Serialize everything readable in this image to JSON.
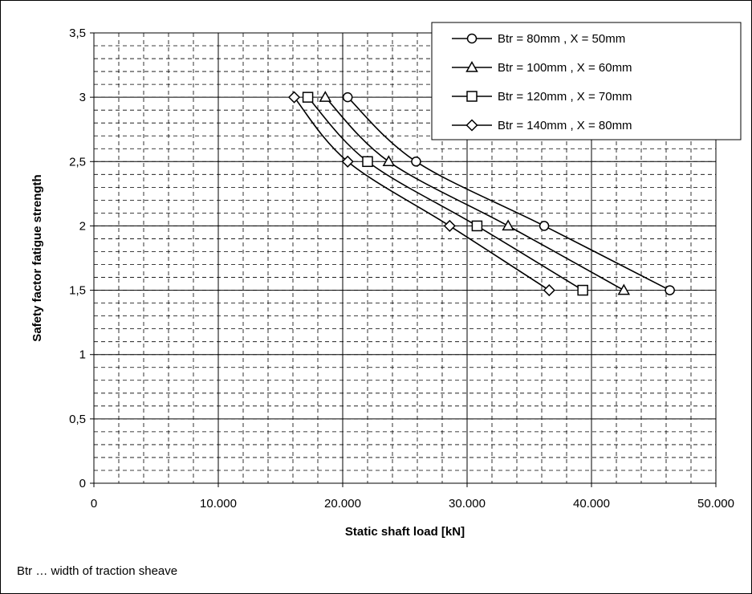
{
  "chart_data": {
    "type": "line",
    "xlabel": "Static shaft load [kN]",
    "ylabel": "Safety factor fatigue strength",
    "xlim": [
      0,
      50000
    ],
    "ylim": [
      0,
      3.5
    ],
    "x_ticks": [
      {
        "value": 0,
        "label": "0"
      },
      {
        "value": 10000,
        "label": "10.000"
      },
      {
        "value": 20000,
        "label": "20.000"
      },
      {
        "value": 30000,
        "label": "30.000"
      },
      {
        "value": 40000,
        "label": "40.000"
      },
      {
        "value": 50000,
        "label": "50.000"
      }
    ],
    "y_ticks": [
      {
        "value": 0,
        "label": "0"
      },
      {
        "value": 0.5,
        "label": "0,5"
      },
      {
        "value": 1,
        "label": "1"
      },
      {
        "value": 1.5,
        "label": "1,5"
      },
      {
        "value": 2,
        "label": "2"
      },
      {
        "value": 2.5,
        "label": "2,5"
      },
      {
        "value": 3,
        "label": "3"
      },
      {
        "value": 3.5,
        "label": "3,5"
      }
    ],
    "grid": {
      "major": true,
      "minor_dashed": true
    },
    "legend_position": "top-right",
    "series": [
      {
        "name": "Btr = 80mm , X = 50mm",
        "marker": "circle",
        "points": [
          [
            20400,
            3.0
          ],
          [
            25900,
            2.5
          ],
          [
            36200,
            2.0
          ],
          [
            46300,
            1.5
          ]
        ]
      },
      {
        "name": "Btr = 100mm , X = 60mm",
        "marker": "triangle",
        "points": [
          [
            18600,
            3.0
          ],
          [
            23700,
            2.5
          ],
          [
            33300,
            2.0
          ],
          [
            42600,
            1.5
          ]
        ]
      },
      {
        "name": "Btr = 120mm , X = 70mm",
        "marker": "square",
        "points": [
          [
            17200,
            3.0
          ],
          [
            22000,
            2.5
          ],
          [
            30800,
            2.0
          ],
          [
            39300,
            1.5
          ]
        ]
      },
      {
        "name": "Btr = 140mm , X = 80mm",
        "marker": "diamond",
        "points": [
          [
            16100,
            3.0
          ],
          [
            20400,
            2.5
          ],
          [
            28600,
            2.0
          ],
          [
            36600,
            1.5
          ]
        ]
      }
    ]
  },
  "footnote": "Btr … width of traction sheave",
  "colors": {
    "line": "#000000",
    "marker_fill": "#ffffff",
    "grid": "#000000",
    "background": "#ffffff"
  }
}
